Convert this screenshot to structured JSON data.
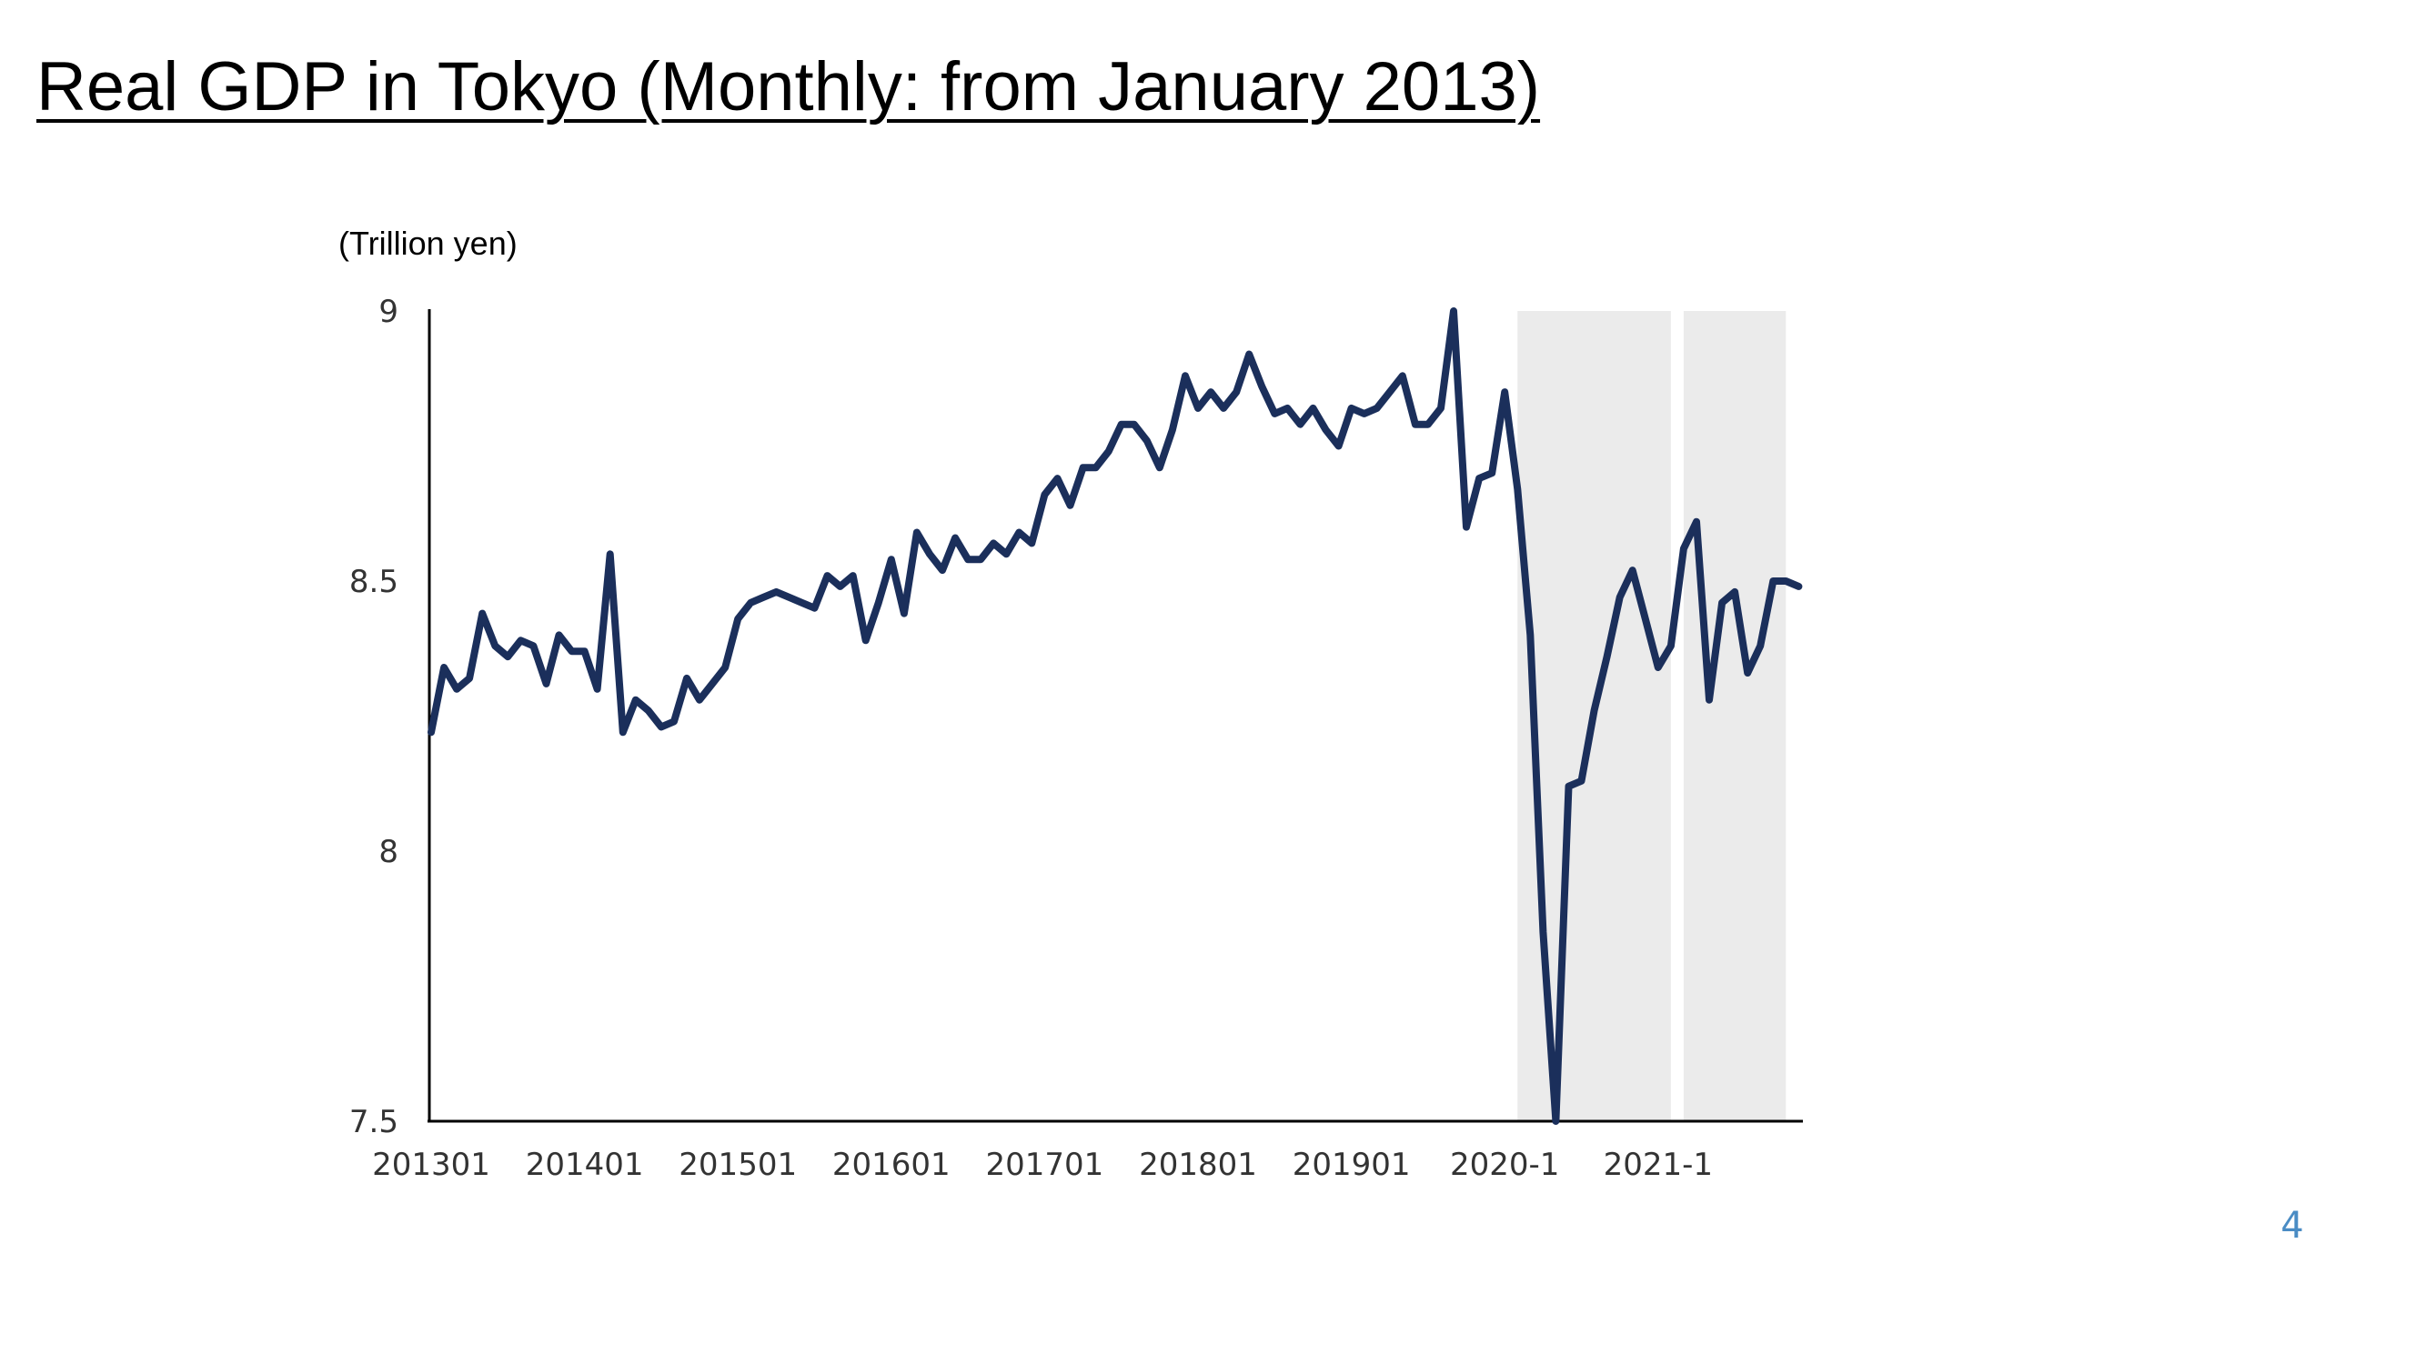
{
  "slide": {
    "title": "Real GDP in Tokyo (Monthly: from January 2013)",
    "page_number": "4"
  },
  "colors": {
    "line": "#1b2f5b",
    "shade": "#ebebeb",
    "axis": "#000000",
    "page_number": "#4a8cc4"
  },
  "chart_data": {
    "type": "line",
    "title": "",
    "ylabel": "(Trillion yen)",
    "xlabel": "",
    "ylim": [
      7.5,
      9
    ],
    "y_ticks": [
      "9",
      "8.5",
      "8",
      "7.5"
    ],
    "y_tick_values": [
      9,
      8.5,
      8,
      7.5
    ],
    "x_ticks": [
      "201301",
      "201401",
      "201501",
      "201601",
      "201701",
      "201801",
      "201901",
      "2020-1",
      "2021-1"
    ],
    "x_tick_index": [
      0,
      12,
      24,
      36,
      48,
      60,
      72,
      84,
      96
    ],
    "grid": false,
    "legend": "none",
    "shaded_periods": [
      {
        "start_index": 85,
        "end_index": 97
      },
      {
        "start_index": 98,
        "end_index": 106
      }
    ],
    "series": [
      {
        "values": [
          8.22,
          8.34,
          8.3,
          8.32,
          8.44,
          8.38,
          8.36,
          8.39,
          8.38,
          8.31,
          8.4,
          8.37,
          8.37,
          8.3,
          8.55,
          8.22,
          8.28,
          8.26,
          8.23,
          8.24,
          8.32,
          8.28,
          8.31,
          8.34,
          8.43,
          8.46,
          8.47,
          8.48,
          8.47,
          8.46,
          8.45,
          8.51,
          8.49,
          8.51,
          8.39,
          8.46,
          8.54,
          8.44,
          8.59,
          8.55,
          8.52,
          8.58,
          8.54,
          8.54,
          8.57,
          8.55,
          8.59,
          8.57,
          8.66,
          8.69,
          8.64,
          8.71,
          8.71,
          8.74,
          8.79,
          8.79,
          8.76,
          8.71,
          8.78,
          8.88,
          8.82,
          8.85,
          8.82,
          8.85,
          8.92,
          8.86,
          8.81,
          8.82,
          8.79,
          8.82,
          8.78,
          8.75,
          8.82,
          8.81,
          8.82,
          8.85,
          8.88,
          8.79,
          8.79,
          8.82,
          9.0,
          8.6,
          8.69,
          8.7,
          8.85,
          8.67,
          8.4,
          7.85,
          7.5,
          8.12,
          8.13,
          8.26,
          8.36,
          8.47,
          8.52,
          8.43,
          8.34,
          8.38,
          8.56,
          8.61,
          8.28,
          8.46,
          8.48,
          8.33,
          8.38,
          8.5,
          8.5,
          8.49
        ]
      }
    ]
  }
}
